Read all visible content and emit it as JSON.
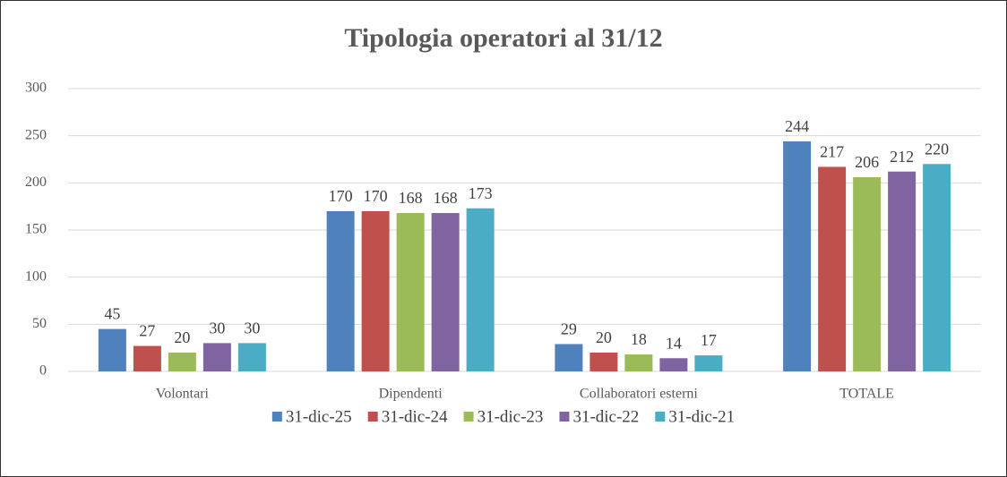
{
  "chart_data": {
    "type": "bar",
    "title": "Tipologia operatori al 31/12",
    "categories": [
      "Volontari",
      "Dipendenti",
      "Collaboratori esterni",
      "TOTALE"
    ],
    "series": [
      {
        "name": "31-dic-25",
        "color": "#4f81bd",
        "values": [
          45,
          170,
          29,
          244
        ]
      },
      {
        "name": "31-dic-24",
        "color": "#c0504d",
        "values": [
          27,
          170,
          20,
          217
        ]
      },
      {
        "name": "31-dic-23",
        "color": "#9bbb59",
        "values": [
          20,
          168,
          18,
          206
        ]
      },
      {
        "name": "31-dic-22",
        "color": "#8064a2",
        "values": [
          30,
          168,
          14,
          212
        ]
      },
      {
        "name": "31-dic-21",
        "color": "#4bacc6",
        "values": [
          30,
          173,
          17,
          220
        ]
      }
    ],
    "ylim": [
      0,
      300
    ],
    "yticks": [
      0,
      50,
      100,
      150,
      200,
      250,
      300
    ],
    "grid": true,
    "legend": "bottom"
  }
}
